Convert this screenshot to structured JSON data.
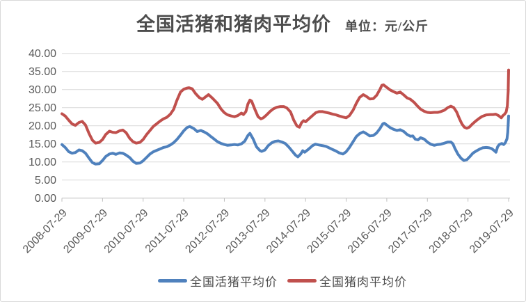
{
  "header": {
    "title": "全国活猪和猪肉平均价",
    "unit": "单位：元/公斤"
  },
  "chart_data": {
    "type": "line",
    "title": "全国活猪和猪肉平均价",
    "unit_label": "单位：元/公斤",
    "grid": true,
    "legend_position": "bottom",
    "ylim": [
      0,
      40
    ],
    "y_ticks": [
      {
        "v": 0,
        "label": "0.00"
      },
      {
        "v": 5,
        "label": "5.00"
      },
      {
        "v": 10,
        "label": "10.00"
      },
      {
        "v": 15,
        "label": "15.00"
      },
      {
        "v": 20,
        "label": "20.00"
      },
      {
        "v": 25,
        "label": "25.00"
      },
      {
        "v": 30,
        "label": "30.00"
      },
      {
        "v": 35,
        "label": "35.00"
      },
      {
        "v": 40,
        "label": "40.00"
      }
    ],
    "x_unit": "years since 2008-07-29",
    "x_ticks": [
      {
        "t": 0,
        "label": "2008-07-29"
      },
      {
        "t": 1,
        "label": "2009-07-29"
      },
      {
        "t": 2,
        "label": "2010-07-29"
      },
      {
        "t": 3,
        "label": "2011-07-29"
      },
      {
        "t": 4,
        "label": "2012-07-29"
      },
      {
        "t": 5,
        "label": "2013-07-29"
      },
      {
        "t": 6,
        "label": "2014-07-29"
      },
      {
        "t": 7,
        "label": "2015-07-29"
      },
      {
        "t": 8,
        "label": "2016-07-29"
      },
      {
        "t": 9,
        "label": "2017-07-29"
      },
      {
        "t": 10,
        "label": "2018-07-29"
      },
      {
        "t": 11,
        "label": "2019-07-29"
      }
    ],
    "colors": {
      "live_pig": "#4F81BD",
      "pork": "#C0504D",
      "gridline": "#D9D9D9",
      "axis": "#BFBFBF",
      "label": "#595959"
    },
    "series": [
      {
        "key": "live-pig",
        "name": "全国活猪平均价",
        "color": "#4F81BD",
        "points": [
          [
            0,
            14.8
          ],
          [
            0.08,
            14.0
          ],
          [
            0.17,
            12.8
          ],
          [
            0.25,
            12.4
          ],
          [
            0.33,
            12.6
          ],
          [
            0.42,
            13.3
          ],
          [
            0.5,
            13.1
          ],
          [
            0.58,
            12.4
          ],
          [
            0.67,
            11.0
          ],
          [
            0.75,
            9.8
          ],
          [
            0.83,
            9.4
          ],
          [
            0.92,
            9.5
          ],
          [
            1.0,
            10.4
          ],
          [
            1.08,
            11.5
          ],
          [
            1.17,
            12.2
          ],
          [
            1.25,
            12.4
          ],
          [
            1.33,
            12.1
          ],
          [
            1.42,
            12.5
          ],
          [
            1.5,
            12.4
          ],
          [
            1.58,
            11.9
          ],
          [
            1.67,
            11.2
          ],
          [
            1.75,
            10.2
          ],
          [
            1.83,
            9.6
          ],
          [
            1.92,
            9.7
          ],
          [
            2.0,
            10.3
          ],
          [
            2.08,
            11.2
          ],
          [
            2.17,
            12.2
          ],
          [
            2.25,
            12.8
          ],
          [
            2.33,
            13.2
          ],
          [
            2.42,
            13.6
          ],
          [
            2.5,
            14.0
          ],
          [
            2.58,
            14.2
          ],
          [
            2.67,
            14.7
          ],
          [
            2.75,
            15.3
          ],
          [
            2.83,
            16.2
          ],
          [
            2.92,
            17.4
          ],
          [
            3.0,
            18.6
          ],
          [
            3.08,
            19.5
          ],
          [
            3.15,
            19.8
          ],
          [
            3.25,
            19.2
          ],
          [
            3.33,
            18.4
          ],
          [
            3.42,
            18.7
          ],
          [
            3.5,
            18.3
          ],
          [
            3.58,
            17.8
          ],
          [
            3.67,
            17.0
          ],
          [
            3.75,
            16.3
          ],
          [
            3.83,
            15.6
          ],
          [
            3.92,
            15.1
          ],
          [
            4.0,
            14.8
          ],
          [
            4.08,
            14.6
          ],
          [
            4.17,
            14.7
          ],
          [
            4.25,
            14.8
          ],
          [
            4.33,
            14.7
          ],
          [
            4.42,
            15.0
          ],
          [
            4.5,
            15.7
          ],
          [
            4.58,
            17.3
          ],
          [
            4.63,
            17.9
          ],
          [
            4.71,
            16.3
          ],
          [
            4.79,
            14.2
          ],
          [
            4.88,
            13.1
          ],
          [
            4.92,
            12.9
          ],
          [
            5.0,
            13.3
          ],
          [
            5.08,
            14.5
          ],
          [
            5.17,
            15.3
          ],
          [
            5.25,
            15.7
          ],
          [
            5.33,
            15.8
          ],
          [
            5.42,
            15.5
          ],
          [
            5.5,
            15.1
          ],
          [
            5.58,
            14.2
          ],
          [
            5.67,
            13.0
          ],
          [
            5.75,
            11.9
          ],
          [
            5.81,
            11.4
          ],
          [
            5.88,
            12.2
          ],
          [
            5.93,
            13.1
          ],
          [
            5.98,
            12.7
          ],
          [
            6.08,
            13.6
          ],
          [
            6.17,
            14.5
          ],
          [
            6.24,
            14.9
          ],
          [
            6.33,
            14.7
          ],
          [
            6.42,
            14.5
          ],
          [
            6.5,
            14.3
          ],
          [
            6.58,
            13.9
          ],
          [
            6.67,
            13.4
          ],
          [
            6.75,
            13.0
          ],
          [
            6.83,
            12.5
          ],
          [
            6.92,
            12.2
          ],
          [
            7.0,
            12.8
          ],
          [
            7.08,
            14.0
          ],
          [
            7.17,
            15.6
          ],
          [
            7.25,
            17.0
          ],
          [
            7.33,
            17.8
          ],
          [
            7.42,
            18.3
          ],
          [
            7.5,
            17.8
          ],
          [
            7.58,
            17.2
          ],
          [
            7.67,
            17.3
          ],
          [
            7.75,
            18.0
          ],
          [
            7.83,
            19.2
          ],
          [
            7.9,
            20.5
          ],
          [
            7.94,
            20.7
          ],
          [
            8.0,
            20.2
          ],
          [
            8.08,
            19.5
          ],
          [
            8.17,
            19.0
          ],
          [
            8.25,
            18.7
          ],
          [
            8.33,
            18.9
          ],
          [
            8.42,
            18.4
          ],
          [
            8.5,
            17.6
          ],
          [
            8.58,
            17.1
          ],
          [
            8.64,
            17.2
          ],
          [
            8.7,
            16.3
          ],
          [
            8.77,
            16.1
          ],
          [
            8.83,
            16.7
          ],
          [
            8.92,
            16.3
          ],
          [
            9.0,
            15.5
          ],
          [
            9.08,
            14.9
          ],
          [
            9.17,
            14.6
          ],
          [
            9.25,
            14.8
          ],
          [
            9.33,
            14.9
          ],
          [
            9.42,
            15.2
          ],
          [
            9.5,
            15.5
          ],
          [
            9.58,
            15.5
          ],
          [
            9.63,
            15.0
          ],
          [
            9.67,
            13.9
          ],
          [
            9.75,
            12.2
          ],
          [
            9.83,
            11.0
          ],
          [
            9.9,
            10.4
          ],
          [
            9.97,
            10.6
          ],
          [
            10.04,
            11.4
          ],
          [
            10.12,
            12.4
          ],
          [
            10.2,
            13.0
          ],
          [
            10.28,
            13.5
          ],
          [
            10.36,
            13.9
          ],
          [
            10.45,
            14.0
          ],
          [
            10.52,
            13.9
          ],
          [
            10.58,
            13.7
          ],
          [
            10.64,
            13.2
          ],
          [
            10.69,
            12.7
          ],
          [
            10.73,
            14.2
          ],
          [
            10.77,
            14.8
          ],
          [
            10.83,
            15.1
          ],
          [
            10.88,
            14.8
          ],
          [
            10.92,
            15.3
          ],
          [
            10.96,
            16.4
          ],
          [
            10.98,
            18.2
          ],
          [
            11.0,
            22.7
          ]
        ]
      },
      {
        "key": "pork",
        "name": "全国猪肉平均价",
        "color": "#C0504D",
        "points": [
          [
            0,
            23.3
          ],
          [
            0.08,
            22.7
          ],
          [
            0.17,
            21.5
          ],
          [
            0.25,
            20.5
          ],
          [
            0.33,
            20.1
          ],
          [
            0.42,
            20.9
          ],
          [
            0.5,
            21.2
          ],
          [
            0.58,
            20.2
          ],
          [
            0.67,
            17.8
          ],
          [
            0.75,
            16.0
          ],
          [
            0.83,
            15.2
          ],
          [
            0.92,
            15.4
          ],
          [
            1.0,
            16.2
          ],
          [
            1.08,
            17.6
          ],
          [
            1.17,
            18.5
          ],
          [
            1.25,
            18.2
          ],
          [
            1.33,
            18.1
          ],
          [
            1.42,
            18.6
          ],
          [
            1.5,
            18.8
          ],
          [
            1.58,
            18.1
          ],
          [
            1.67,
            16.5
          ],
          [
            1.75,
            15.6
          ],
          [
            1.83,
            15.2
          ],
          [
            1.92,
            15.4
          ],
          [
            2.0,
            16.2
          ],
          [
            2.08,
            17.5
          ],
          [
            2.17,
            18.7
          ],
          [
            2.25,
            19.8
          ],
          [
            2.33,
            20.5
          ],
          [
            2.42,
            21.3
          ],
          [
            2.5,
            21.9
          ],
          [
            2.58,
            22.3
          ],
          [
            2.67,
            23.2
          ],
          [
            2.75,
            24.5
          ],
          [
            2.83,
            27.0
          ],
          [
            2.92,
            29.3
          ],
          [
            3.0,
            30.1
          ],
          [
            3.08,
            30.4
          ],
          [
            3.13,
            30.5
          ],
          [
            3.21,
            30.2
          ],
          [
            3.29,
            28.9
          ],
          [
            3.38,
            27.8
          ],
          [
            3.46,
            27.3
          ],
          [
            3.54,
            28.0
          ],
          [
            3.61,
            28.6
          ],
          [
            3.71,
            27.6
          ],
          [
            3.83,
            26.2
          ],
          [
            3.92,
            24.6
          ],
          [
            4.0,
            23.6
          ],
          [
            4.08,
            23.0
          ],
          [
            4.17,
            22.7
          ],
          [
            4.25,
            22.5
          ],
          [
            4.33,
            22.8
          ],
          [
            4.42,
            23.5
          ],
          [
            4.47,
            23.1
          ],
          [
            4.53,
            23.9
          ],
          [
            4.58,
            26.0
          ],
          [
            4.63,
            27.1
          ],
          [
            4.67,
            26.8
          ],
          [
            4.75,
            24.6
          ],
          [
            4.83,
            22.5
          ],
          [
            4.9,
            21.9
          ],
          [
            4.96,
            22.2
          ],
          [
            5.04,
            23.0
          ],
          [
            5.13,
            24.0
          ],
          [
            5.21,
            24.7
          ],
          [
            5.29,
            25.1
          ],
          [
            5.38,
            25.3
          ],
          [
            5.46,
            25.3
          ],
          [
            5.54,
            24.9
          ],
          [
            5.63,
            23.8
          ],
          [
            5.71,
            21.5
          ],
          [
            5.79,
            19.9
          ],
          [
            5.85,
            19.6
          ],
          [
            5.9,
            20.8
          ],
          [
            5.95,
            21.4
          ],
          [
            6.0,
            21.1
          ],
          [
            6.08,
            21.9
          ],
          [
            6.17,
            22.8
          ],
          [
            6.25,
            23.6
          ],
          [
            6.33,
            23.9
          ],
          [
            6.42,
            23.9
          ],
          [
            6.5,
            23.7
          ],
          [
            6.58,
            23.5
          ],
          [
            6.67,
            23.2
          ],
          [
            6.75,
            23.0
          ],
          [
            6.83,
            22.7
          ],
          [
            6.92,
            22.4
          ],
          [
            7.0,
            22.2
          ],
          [
            7.08,
            22.8
          ],
          [
            7.17,
            24.3
          ],
          [
            7.25,
            26.2
          ],
          [
            7.33,
            27.8
          ],
          [
            7.42,
            28.6
          ],
          [
            7.5,
            28.1
          ],
          [
            7.58,
            27.4
          ],
          [
            7.67,
            27.5
          ],
          [
            7.75,
            28.4
          ],
          [
            7.83,
            30.0
          ],
          [
            7.88,
            31.2
          ],
          [
            7.92,
            31.3
          ],
          [
            8.0,
            30.6
          ],
          [
            8.08,
            29.9
          ],
          [
            8.17,
            29.4
          ],
          [
            8.25,
            29.0
          ],
          [
            8.33,
            29.3
          ],
          [
            8.42,
            28.5
          ],
          [
            8.5,
            27.7
          ],
          [
            8.58,
            27.3
          ],
          [
            8.67,
            26.5
          ],
          [
            8.75,
            25.5
          ],
          [
            8.83,
            24.6
          ],
          [
            8.92,
            24.0
          ],
          [
            9.0,
            23.7
          ],
          [
            9.08,
            23.6
          ],
          [
            9.17,
            23.7
          ],
          [
            9.25,
            23.7
          ],
          [
            9.33,
            23.9
          ],
          [
            9.42,
            24.3
          ],
          [
            9.5,
            25.0
          ],
          [
            9.58,
            25.4
          ],
          [
            9.65,
            25.0
          ],
          [
            9.72,
            23.8
          ],
          [
            9.79,
            21.9
          ],
          [
            9.85,
            20.5
          ],
          [
            9.91,
            19.6
          ],
          [
            9.97,
            19.3
          ],
          [
            10.03,
            19.6
          ],
          [
            10.1,
            20.4
          ],
          [
            10.18,
            21.2
          ],
          [
            10.27,
            22.0
          ],
          [
            10.35,
            22.6
          ],
          [
            10.45,
            23.0
          ],
          [
            10.55,
            23.1
          ],
          [
            10.62,
            23.1
          ],
          [
            10.68,
            23.2
          ],
          [
            10.75,
            22.8
          ],
          [
            10.82,
            22.2
          ],
          [
            10.86,
            22.8
          ],
          [
            10.9,
            23.2
          ],
          [
            10.94,
            23.8
          ],
          [
            10.97,
            25.5
          ],
          [
            10.99,
            29.5
          ],
          [
            11.0,
            35.4
          ]
        ]
      }
    ]
  }
}
